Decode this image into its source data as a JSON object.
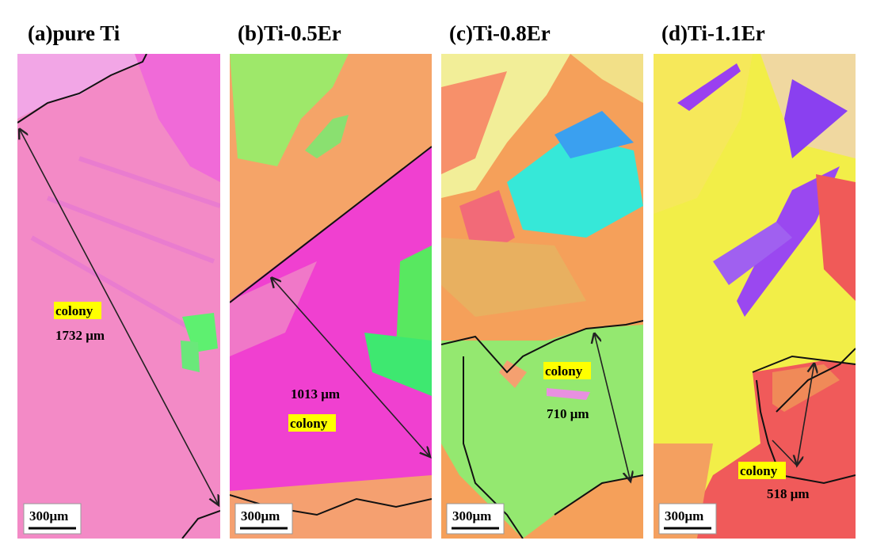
{
  "panels": [
    {
      "title": "(a)pure Ti",
      "label": "colony",
      "size": "1732 μm",
      "scale_bar": "300μm"
    },
    {
      "title": "(b)Ti-0.5Er",
      "label": "colony",
      "size": "1013 μm",
      "scale_bar": "300μm"
    },
    {
      "title": "(c)Ti-0.8Er",
      "label": "colony",
      "size": "710 μm",
      "scale_bar": "300μm"
    },
    {
      "title": "(d)Ti-1.1Er",
      "label": "colony",
      "size": "518 μm",
      "scale_bar": "300μm"
    }
  ]
}
